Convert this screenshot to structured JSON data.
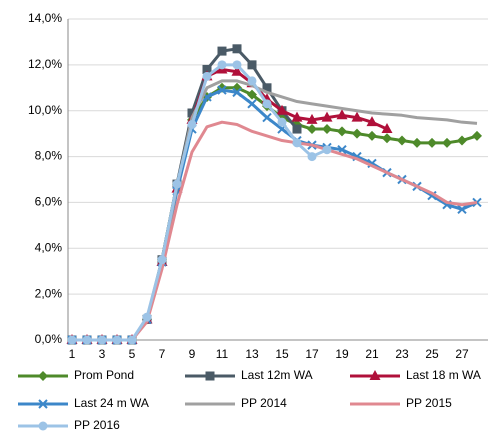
{
  "chart_data": {
    "type": "line",
    "categories": [
      "1",
      null,
      "3",
      null,
      "5",
      null,
      "7",
      null,
      "9",
      null,
      "11",
      null,
      "13",
      null,
      "15",
      null,
      "17",
      null,
      "19",
      null,
      "21",
      null,
      "23",
      null,
      "25",
      null,
      "27",
      null
    ],
    "ylim": [
      0,
      14
    ],
    "yticks": [
      {
        "value": 0,
        "label": "0,0%"
      },
      {
        "value": 2,
        "label": "2,0%"
      },
      {
        "value": 4,
        "label": "4,0%"
      },
      {
        "value": 6,
        "label": "6,0%"
      },
      {
        "value": 8,
        "label": "8,0%"
      },
      {
        "value": 10,
        "label": "10,0%"
      },
      {
        "value": 12,
        "label": "12,0%"
      },
      {
        "value": 14,
        "label": "14,0%"
      }
    ],
    "grid": true,
    "series": [
      {
        "name": "Prom Pond",
        "color": "#4e8a2a",
        "marker": "diamond",
        "values": [
          0,
          0,
          0,
          0,
          0,
          0.9,
          3.5,
          6.8,
          9.6,
          10.6,
          11,
          11,
          10.7,
          10.2,
          9.7,
          9.4,
          9.2,
          9.2,
          9.1,
          9.0,
          8.9,
          8.8,
          8.7,
          8.6,
          8.6,
          8.6,
          8.7,
          8.9
        ]
      },
      {
        "name": "Last 12m WA",
        "color": "#4a5a66",
        "marker": "square",
        "values": [
          0,
          0,
          0,
          0,
          0,
          0.9,
          3.5,
          6.8,
          9.9,
          11.8,
          12.6,
          12.7,
          12.0,
          11.0,
          10.0,
          9.2,
          null,
          null,
          null,
          null,
          null,
          null,
          null,
          null,
          null,
          null,
          null,
          null
        ]
      },
      {
        "name": "Last 18 m WA",
        "color": "#b0103a",
        "marker": "triangle",
        "values": [
          0,
          0,
          0,
          0,
          0,
          0.9,
          3.4,
          6.6,
          9.6,
          11.5,
          11.8,
          11.7,
          11.2,
          10.5,
          10.0,
          9.7,
          9.6,
          9.7,
          9.8,
          9.7,
          9.5,
          9.2,
          null,
          null,
          null,
          null,
          null,
          null
        ]
      },
      {
        "name": "Last 24 m WA",
        "color": "#3c87c9",
        "marker": "x",
        "values": [
          0,
          0,
          0,
          0,
          0,
          0.9,
          3.4,
          6.5,
          9.2,
          10.6,
          10.9,
          10.8,
          10.3,
          9.7,
          9.2,
          8.7,
          8.5,
          8.4,
          8.3,
          8.0,
          7.7,
          7.3,
          7.0,
          6.7,
          6.3,
          5.9,
          5.7,
          6.0
        ]
      },
      {
        "name": "PP 2014",
        "color": "#a0a0a0",
        "marker": "none",
        "values": [
          0,
          0,
          0,
          0,
          0,
          0.9,
          3.4,
          6.7,
          9.7,
          11.0,
          11.3,
          11.3,
          11.1,
          10.8,
          10.6,
          10.4,
          10.3,
          10.2,
          10.1,
          10.0,
          9.9,
          9.85,
          9.8,
          9.7,
          9.65,
          9.6,
          9.5,
          9.45
        ]
      },
      {
        "name": "PP 2015",
        "color": "#e08890",
        "marker": "none",
        "values": [
          0,
          0,
          0,
          0,
          0,
          0.8,
          3.1,
          5.9,
          8.2,
          9.3,
          9.5,
          9.4,
          9.1,
          8.9,
          8.7,
          8.6,
          8.5,
          8.3,
          8.1,
          7.9,
          7.6,
          7.3,
          7.0,
          6.7,
          6.4,
          6.0,
          5.9,
          6.0
        ]
      },
      {
        "name": "PP 2016",
        "color": "#9cc3e6",
        "marker": "circle",
        "values": [
          0,
          0,
          0,
          0,
          0,
          1.0,
          3.5,
          6.8,
          9.4,
          11.5,
          12.0,
          12.0,
          11.3,
          10.3,
          9.5,
          8.6,
          8.0,
          8.3,
          null,
          null,
          null,
          null,
          null,
          null,
          null,
          null,
          null,
          null
        ]
      }
    ]
  }
}
